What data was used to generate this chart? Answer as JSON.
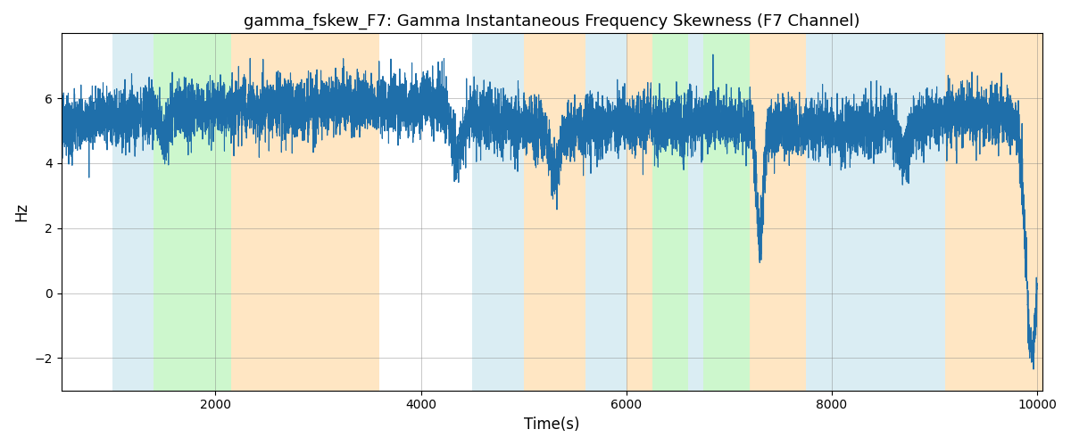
{
  "title": "gamma_fskew_F7: Gamma Instantaneous Frequency Skewness (F7 Channel)",
  "xlabel": "Time(s)",
  "ylabel": "Hz",
  "xlim": [
    500,
    10050
  ],
  "ylim": [
    -3.0,
    8.0
  ],
  "yticks": [
    -2,
    0,
    2,
    4,
    6
  ],
  "xticks": [
    2000,
    4000,
    6000,
    8000,
    10000
  ],
  "line_color": "#1f6faa",
  "line_width": 0.8,
  "background_regions": [
    {
      "xmin": 1000,
      "xmax": 1400,
      "color": "#add8e6",
      "alpha": 0.45
    },
    {
      "xmin": 1400,
      "xmax": 2150,
      "color": "#90ee90",
      "alpha": 0.45
    },
    {
      "xmin": 2150,
      "xmax": 3600,
      "color": "#ffc87a",
      "alpha": 0.45
    },
    {
      "xmin": 4500,
      "xmax": 5000,
      "color": "#add8e6",
      "alpha": 0.45
    },
    {
      "xmin": 5000,
      "xmax": 5600,
      "color": "#ffc87a",
      "alpha": 0.45
    },
    {
      "xmin": 5600,
      "xmax": 6000,
      "color": "#add8e6",
      "alpha": 0.45
    },
    {
      "xmin": 6000,
      "xmax": 6250,
      "color": "#ffc87a",
      "alpha": 0.45
    },
    {
      "xmin": 6250,
      "xmax": 6600,
      "color": "#90ee90",
      "alpha": 0.45
    },
    {
      "xmin": 6600,
      "xmax": 6750,
      "color": "#add8e6",
      "alpha": 0.45
    },
    {
      "xmin": 6750,
      "xmax": 7200,
      "color": "#90ee90",
      "alpha": 0.45
    },
    {
      "xmin": 7200,
      "xmax": 7750,
      "color": "#ffc87a",
      "alpha": 0.45
    },
    {
      "xmin": 7750,
      "xmax": 9100,
      "color": "#add8e6",
      "alpha": 0.45
    },
    {
      "xmin": 9100,
      "xmax": 10050,
      "color": "#ffc87a",
      "alpha": 0.45
    }
  ],
  "seed": 42,
  "n_points": 9500
}
